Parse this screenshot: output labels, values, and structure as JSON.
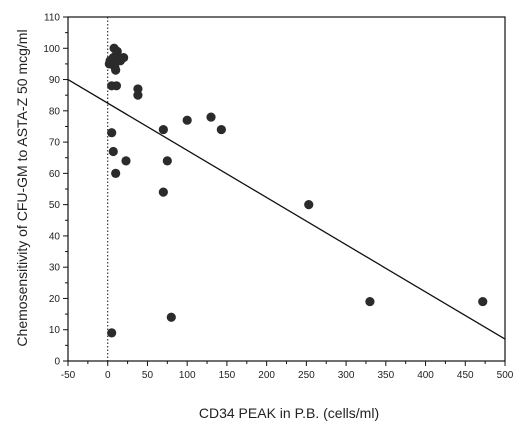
{
  "chart_data": {
    "type": "scatter",
    "title": "",
    "xlabel": "CD34  PEAK in P.B. (cells/ml)",
    "ylabel": "Chemosensitivity of CFU-GM to ASTA-Z 50 mcg/ml",
    "xlim": [
      -50,
      500
    ],
    "ylim": [
      0,
      110
    ],
    "xticks": [
      -50,
      0,
      50,
      100,
      150,
      200,
      250,
      300,
      350,
      400,
      450,
      500
    ],
    "yticks": [
      0,
      10,
      20,
      30,
      40,
      50,
      60,
      70,
      80,
      90,
      100,
      110
    ],
    "grid": false,
    "legend": "none",
    "reference_line_x": 0,
    "series": [
      {
        "points": [
          [
            2,
            95
          ],
          [
            3,
            96
          ],
          [
            5,
            88
          ],
          [
            6,
            95
          ],
          [
            7,
            97
          ],
          [
            8,
            100
          ],
          [
            9,
            94
          ],
          [
            10,
            93
          ],
          [
            11,
            98
          ],
          [
            12,
            99
          ],
          [
            14,
            97
          ],
          [
            16,
            96
          ],
          [
            20,
            97
          ],
          [
            11,
            88
          ],
          [
            38,
            87
          ],
          [
            38,
            85
          ],
          [
            5,
            73
          ],
          [
            7,
            67
          ],
          [
            10,
            60
          ],
          [
            23,
            64
          ],
          [
            70,
            74
          ],
          [
            75,
            64
          ],
          [
            70,
            54
          ],
          [
            100,
            77
          ],
          [
            130,
            78
          ],
          [
            143,
            74
          ],
          [
            5,
            9
          ],
          [
            80,
            14
          ],
          [
            253,
            50
          ],
          [
            330,
            19
          ],
          [
            472,
            19
          ]
        ]
      }
    ],
    "trendline": {
      "x": [
        -50,
        500
      ],
      "y": [
        90,
        7
      ]
    },
    "point_color": "#2b2b2b",
    "line_color": "#111111"
  }
}
